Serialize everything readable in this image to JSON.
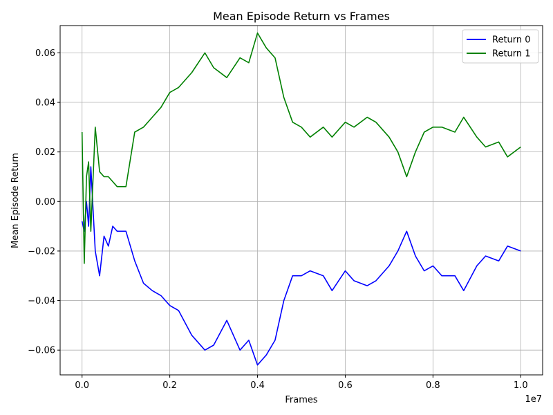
{
  "chart_data": {
    "type": "line",
    "title": "Mean Episode Return vs Frames",
    "xlabel": "Frames",
    "ylabel": "Mean Episode Return",
    "x_offset_label": "1e7",
    "xlim": [
      -0.05,
      1.05
    ],
    "ylim": [
      -0.07,
      0.071
    ],
    "x_ticks": [
      0.0,
      0.2,
      0.4,
      0.6,
      0.8,
      1.0
    ],
    "x_tick_labels": [
      "0.0",
      "0.2",
      "0.4",
      "0.6",
      "0.8",
      "1.0"
    ],
    "y_ticks": [
      -0.06,
      -0.04,
      -0.02,
      0.0,
      0.02,
      0.04,
      0.06
    ],
    "y_tick_labels": [
      "−0.06",
      "−0.04",
      "−0.02",
      "0.00",
      "0.02",
      "0.04",
      "0.06"
    ],
    "grid": true,
    "legend_position": "top-right",
    "x_units_note": "x values in units of 1e7 frames",
    "series": [
      {
        "name": "Return 0",
        "color": "#0000ff",
        "x": [
          0.0,
          0.005,
          0.01,
          0.015,
          0.02,
          0.03,
          0.04,
          0.05,
          0.06,
          0.07,
          0.08,
          0.1,
          0.12,
          0.14,
          0.16,
          0.18,
          0.2,
          0.22,
          0.25,
          0.28,
          0.3,
          0.33,
          0.36,
          0.38,
          0.4,
          0.42,
          0.44,
          0.46,
          0.48,
          0.5,
          0.52,
          0.55,
          0.57,
          0.6,
          0.62,
          0.65,
          0.67,
          0.7,
          0.72,
          0.74,
          0.76,
          0.78,
          0.8,
          0.82,
          0.85,
          0.87,
          0.9,
          0.92,
          0.95,
          0.97,
          1.0
        ],
        "y": [
          -0.008,
          -0.012,
          0.0,
          -0.01,
          0.014,
          -0.02,
          -0.03,
          -0.014,
          -0.018,
          -0.01,
          -0.012,
          -0.012,
          -0.024,
          -0.033,
          -0.036,
          -0.038,
          -0.042,
          -0.044,
          -0.054,
          -0.06,
          -0.058,
          -0.048,
          -0.06,
          -0.056,
          -0.066,
          -0.062,
          -0.056,
          -0.04,
          -0.03,
          -0.03,
          -0.028,
          -0.03,
          -0.036,
          -0.028,
          -0.032,
          -0.034,
          -0.032,
          -0.026,
          -0.02,
          -0.012,
          -0.022,
          -0.028,
          -0.026,
          -0.03,
          -0.03,
          -0.036,
          -0.026,
          -0.022,
          -0.024,
          -0.018,
          -0.02
        ]
      },
      {
        "name": "Return 1",
        "color": "#008000",
        "x": [
          0.0,
          0.005,
          0.01,
          0.015,
          0.02,
          0.03,
          0.04,
          0.05,
          0.06,
          0.07,
          0.08,
          0.1,
          0.12,
          0.14,
          0.16,
          0.18,
          0.2,
          0.22,
          0.25,
          0.28,
          0.3,
          0.33,
          0.36,
          0.38,
          0.4,
          0.42,
          0.44,
          0.46,
          0.48,
          0.5,
          0.52,
          0.55,
          0.57,
          0.6,
          0.62,
          0.65,
          0.67,
          0.7,
          0.72,
          0.74,
          0.76,
          0.78,
          0.8,
          0.82,
          0.85,
          0.87,
          0.9,
          0.92,
          0.95,
          0.97,
          1.0
        ],
        "y": [
          0.028,
          -0.025,
          0.01,
          0.016,
          -0.012,
          0.03,
          0.012,
          0.01,
          0.01,
          0.008,
          0.006,
          0.006,
          0.028,
          0.03,
          0.034,
          0.038,
          0.044,
          0.046,
          0.052,
          0.06,
          0.054,
          0.05,
          0.058,
          0.056,
          0.068,
          0.062,
          0.058,
          0.042,
          0.032,
          0.03,
          0.026,
          0.03,
          0.026,
          0.032,
          0.03,
          0.034,
          0.032,
          0.026,
          0.02,
          0.01,
          0.02,
          0.028,
          0.03,
          0.03,
          0.028,
          0.034,
          0.026,
          0.022,
          0.024,
          0.018,
          0.022
        ]
      }
    ]
  }
}
